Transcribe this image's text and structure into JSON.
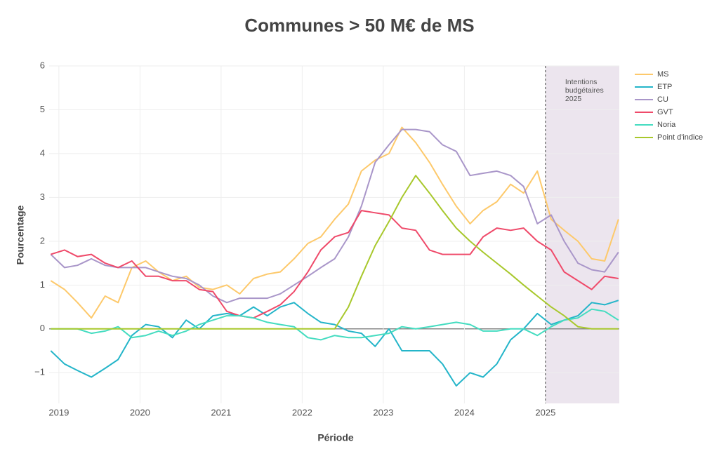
{
  "chart_data": {
    "type": "line",
    "title": "Communes > 50 M€ de MS",
    "x_label": "Période",
    "y_label": "Pourcentage",
    "x": [
      2018.9,
      2019.07,
      2019.23,
      2019.4,
      2019.57,
      2019.73,
      2019.9,
      2020.07,
      2020.23,
      2020.4,
      2020.57,
      2020.73,
      2020.9,
      2021.07,
      2021.23,
      2021.4,
      2021.57,
      2021.73,
      2021.9,
      2022.07,
      2022.23,
      2022.4,
      2022.57,
      2022.73,
      2022.9,
      2023.07,
      2023.23,
      2023.4,
      2023.57,
      2023.73,
      2023.9,
      2024.07,
      2024.23,
      2024.4,
      2024.57,
      2024.73,
      2024.9,
      2025.07,
      2025.23,
      2025.4,
      2025.57,
      2025.73,
      2025.9
    ],
    "series": [
      {
        "name": "MS",
        "color": "#fdc96b",
        "values": [
          1.1,
          0.9,
          0.6,
          0.25,
          0.75,
          0.6,
          1.4,
          1.55,
          1.3,
          1.1,
          1.2,
          0.95,
          0.9,
          1.0,
          0.8,
          1.15,
          1.25,
          1.3,
          1.6,
          1.95,
          2.1,
          2.5,
          2.85,
          3.6,
          3.85,
          4.0,
          4.6,
          4.25,
          3.8,
          3.3,
          2.8,
          2.4,
          2.7,
          2.9,
          3.3,
          3.1,
          3.6,
          2.5,
          2.25,
          2.0,
          1.6,
          1.55,
          2.5
        ]
      },
      {
        "name": "ETP",
        "color": "#24b5c9",
        "values": [
          -0.5,
          -0.8,
          -0.95,
          -1.1,
          -0.9,
          -0.7,
          -0.15,
          0.1,
          0.05,
          -0.2,
          0.2,
          0.0,
          0.3,
          0.35,
          0.3,
          0.5,
          0.3,
          0.5,
          0.6,
          0.35,
          0.15,
          0.1,
          -0.05,
          -0.1,
          -0.4,
          0.0,
          -0.5,
          -0.5,
          -0.5,
          -0.8,
          -1.3,
          -1.0,
          -1.1,
          -0.8,
          -0.25,
          0.0,
          0.35,
          0.1,
          0.2,
          0.3,
          0.6,
          0.55,
          0.65
        ]
      },
      {
        "name": "CU",
        "color": "#a996c9",
        "values": [
          1.7,
          1.4,
          1.45,
          1.6,
          1.45,
          1.4,
          1.4,
          1.4,
          1.3,
          1.2,
          1.15,
          1.0,
          0.75,
          0.6,
          0.7,
          0.7,
          0.7,
          0.8,
          1.0,
          1.2,
          1.4,
          1.6,
          2.1,
          2.8,
          3.8,
          4.2,
          4.55,
          4.55,
          4.5,
          4.2,
          4.05,
          3.5,
          3.55,
          3.6,
          3.5,
          3.25,
          2.4,
          2.6,
          2.0,
          1.5,
          1.35,
          1.3,
          1.75
        ]
      },
      {
        "name": "GVT",
        "color": "#ef4a6a",
        "values": [
          1.7,
          1.8,
          1.65,
          1.7,
          1.5,
          1.4,
          1.55,
          1.2,
          1.2,
          1.1,
          1.1,
          0.9,
          0.85,
          0.4,
          0.3,
          0.25,
          0.4,
          0.55,
          0.85,
          1.3,
          1.8,
          2.1,
          2.2,
          2.7,
          2.65,
          2.6,
          2.3,
          2.25,
          1.8,
          1.7,
          1.7,
          1.7,
          2.1,
          2.3,
          2.25,
          2.3,
          2.0,
          1.8,
          1.3,
          1.1,
          0.9,
          1.2,
          1.15
        ]
      },
      {
        "name": "Noria",
        "color": "#44dcc0",
        "values": [
          0.0,
          0.0,
          0.0,
          -0.1,
          -0.05,
          0.05,
          -0.2,
          -0.15,
          -0.05,
          -0.15,
          -0.05,
          0.1,
          0.2,
          0.3,
          0.3,
          0.25,
          0.15,
          0.1,
          0.05,
          -0.2,
          -0.25,
          -0.15,
          -0.2,
          -0.2,
          -0.15,
          -0.1,
          0.05,
          0.0,
          0.05,
          0.1,
          0.15,
          0.1,
          -0.05,
          -0.05,
          0.0,
          0.0,
          -0.15,
          0.05,
          0.2,
          0.25,
          0.45,
          0.4,
          0.2
        ]
      },
      {
        "name": "Point d'indice",
        "color": "#a8c82c",
        "values": [
          0,
          0,
          0,
          0,
          0,
          0,
          0,
          0,
          0,
          0,
          0,
          0,
          0,
          0,
          0,
          0,
          0,
          0,
          0,
          0,
          0,
          0,
          0.5,
          1.2,
          1.9,
          2.45,
          3.0,
          3.5,
          3.1,
          2.7,
          2.3,
          2.0,
          1.75,
          1.5,
          1.25,
          1.0,
          0.75,
          0.5,
          0.3,
          0.05,
          0,
          0,
          0
        ]
      }
    ],
    "xlim": [
      2018.88,
      2025.91
    ],
    "xticks": [
      2019,
      2020,
      2021,
      2022,
      2023,
      2024,
      2025
    ],
    "ylim": [
      -1.7,
      6
    ],
    "yticks": [
      {
        "value": -1,
        "label": "−1"
      },
      0,
      1,
      2,
      3,
      4,
      5,
      6
    ],
    "grid": true,
    "legend": "right",
    "annotation": {
      "x": 2025,
      "lines": [
        "Intentions",
        "budgétaires",
        "2025"
      ],
      "shade": "#ece5ee"
    }
  }
}
